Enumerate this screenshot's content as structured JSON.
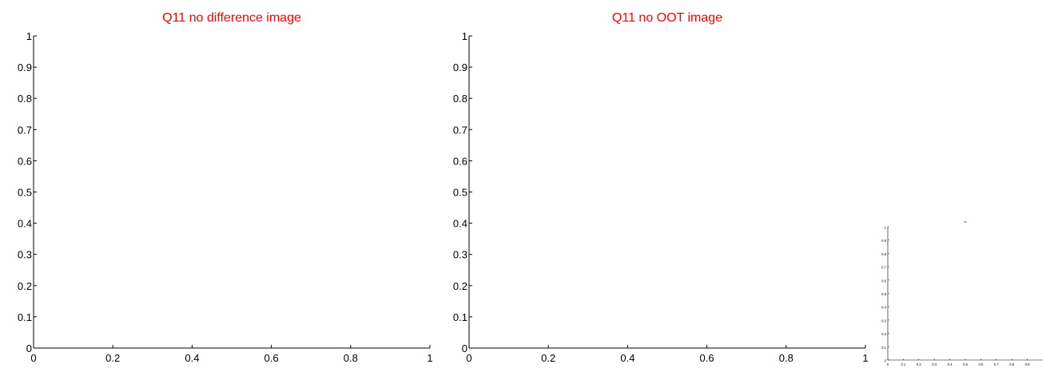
{
  "colors": {
    "background": "#ffffff",
    "axis": "#000000",
    "title": "#ff0000"
  },
  "chart_data": [
    {
      "type": "line",
      "title": "Q11 no difference image",
      "xlabel": "",
      "ylabel": "",
      "xlim": [
        0,
        1
      ],
      "ylim": [
        0,
        1
      ],
      "x_ticks": [
        "0",
        "0.2",
        "0.4",
        "0.6",
        "0.8",
        "1"
      ],
      "y_ticks": [
        "0",
        "0.1",
        "0.2",
        "0.3",
        "0.4",
        "0.5",
        "0.6",
        "0.7",
        "0.8",
        "0.9",
        "1"
      ],
      "grid": false,
      "series": []
    },
    {
      "type": "line",
      "title": "Q11 no OOT image",
      "xlabel": "",
      "ylabel": "",
      "xlim": [
        0,
        1
      ],
      "ylim": [
        0,
        1
      ],
      "x_ticks": [
        "0",
        "0.2",
        "0.4",
        "0.6",
        "0.8",
        "1"
      ],
      "y_ticks": [
        "0",
        "0.1",
        "0.2",
        "0.3",
        "0.4",
        "0.5",
        "0.6",
        "0.7",
        "0.8",
        "0.9",
        "1"
      ],
      "grid": false,
      "series": []
    },
    {
      "type": "line",
      "title": "",
      "xlabel": "",
      "ylabel": "",
      "xlim": [
        0,
        1
      ],
      "ylim": [
        0,
        1
      ],
      "x_ticks": [
        "0",
        "0.1",
        "0.2",
        "0.3",
        "0.4",
        "0.5",
        "0.6",
        "0.7",
        "0.8",
        "0.9"
      ],
      "y_ticks": [
        "0",
        "0.1",
        "0.2",
        "0.3",
        "0.4",
        "0.5",
        "0.6",
        "0.7",
        "0.8",
        "0.9",
        "1"
      ],
      "grid": false,
      "series": []
    }
  ]
}
